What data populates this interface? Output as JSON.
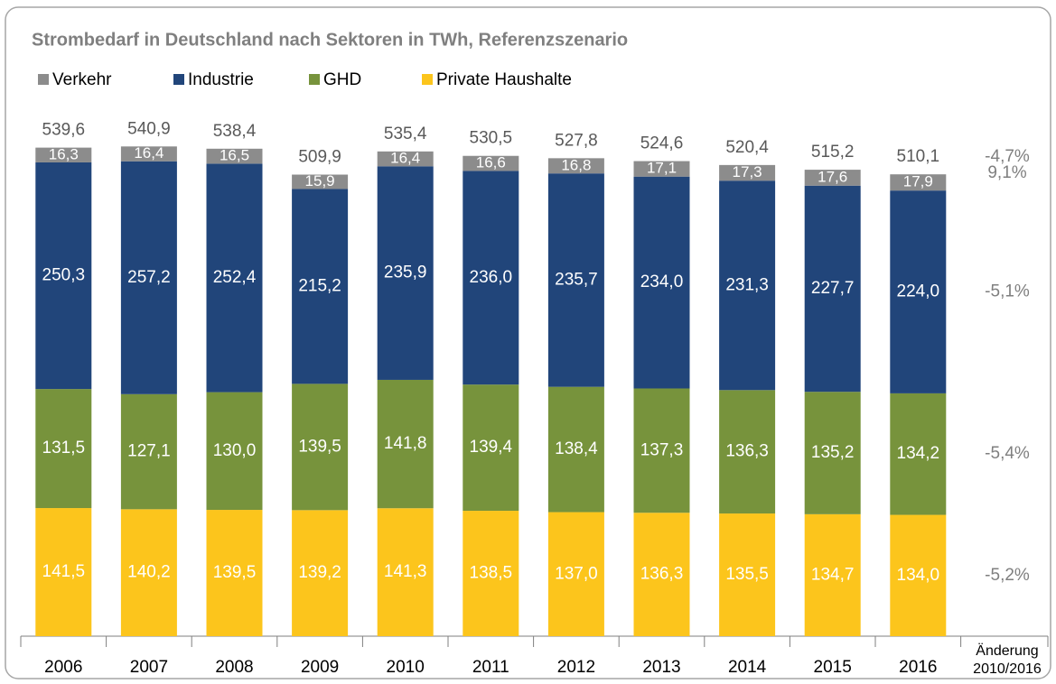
{
  "chart_data": {
    "type": "stacked_bar",
    "title": "Strombedarf in Deutschland nach Sektoren in TWh, Referenzszenario",
    "categories": [
      "2006",
      "2007",
      "2008",
      "2009",
      "2010",
      "2011",
      "2012",
      "2013",
      "2014",
      "2015",
      "2016"
    ],
    "series": [
      {
        "name": "Verkehr",
        "color": "#8c8c8c",
        "values": [
          16.3,
          16.4,
          16.5,
          15.9,
          16.4,
          16.6,
          16.8,
          17.1,
          17.3,
          17.6,
          17.9
        ],
        "value_labels": [
          "16,3",
          "16,4",
          "16,5",
          "15,9",
          "16,4",
          "16,6",
          "16,8",
          "17,1",
          "17,3",
          "17,6",
          "17,9"
        ]
      },
      {
        "name": "Industrie",
        "color": "#21457a",
        "values": [
          250.3,
          257.2,
          252.4,
          215.2,
          235.9,
          236.0,
          235.7,
          234.0,
          231.3,
          227.7,
          224.0
        ],
        "value_labels": [
          "250,3",
          "257,2",
          "252,4",
          "215,2",
          "235,9",
          "236,0",
          "235,7",
          "234,0",
          "231,3",
          "227,7",
          "224,0"
        ]
      },
      {
        "name": "GHD",
        "color": "#77933c",
        "values": [
          131.5,
          127.1,
          130.0,
          139.5,
          141.8,
          139.4,
          138.4,
          137.3,
          136.3,
          135.2,
          134.2
        ],
        "value_labels": [
          "131,5",
          "127,1",
          "130,0",
          "139,5",
          "141,8",
          "139,4",
          "138,4",
          "137,3",
          "136,3",
          "135,2",
          "134,2"
        ]
      },
      {
        "name": "Private Haushalte",
        "color": "#fcc51c",
        "values": [
          141.5,
          140.2,
          139.5,
          139.2,
          141.3,
          138.5,
          137.0,
          136.3,
          135.5,
          134.7,
          134.0
        ],
        "value_labels": [
          "141,5",
          "140,2",
          "139,5",
          "139,2",
          "141,3",
          "138,5",
          "137,0",
          "136,3",
          "135,5",
          "134,7",
          "134,0"
        ]
      }
    ],
    "totals": [
      539.6,
      540.9,
      538.4,
      509.9,
      535.4,
      530.5,
      527.8,
      524.6,
      520.4,
      515.2,
      510.1
    ],
    "total_labels": [
      "539,6",
      "540,9",
      "538,4",
      "509,9",
      "535,4",
      "530,5",
      "527,8",
      "524,6",
      "520,4",
      "515,2",
      "510,1"
    ],
    "change_header": [
      "Änderung",
      "2010/2016"
    ],
    "change_labels": [
      "-4,7%",
      "9,1%",
      "-5,1%",
      "-5,4%",
      "-5,2%"
    ],
    "ylim": [
      0,
      600
    ]
  }
}
